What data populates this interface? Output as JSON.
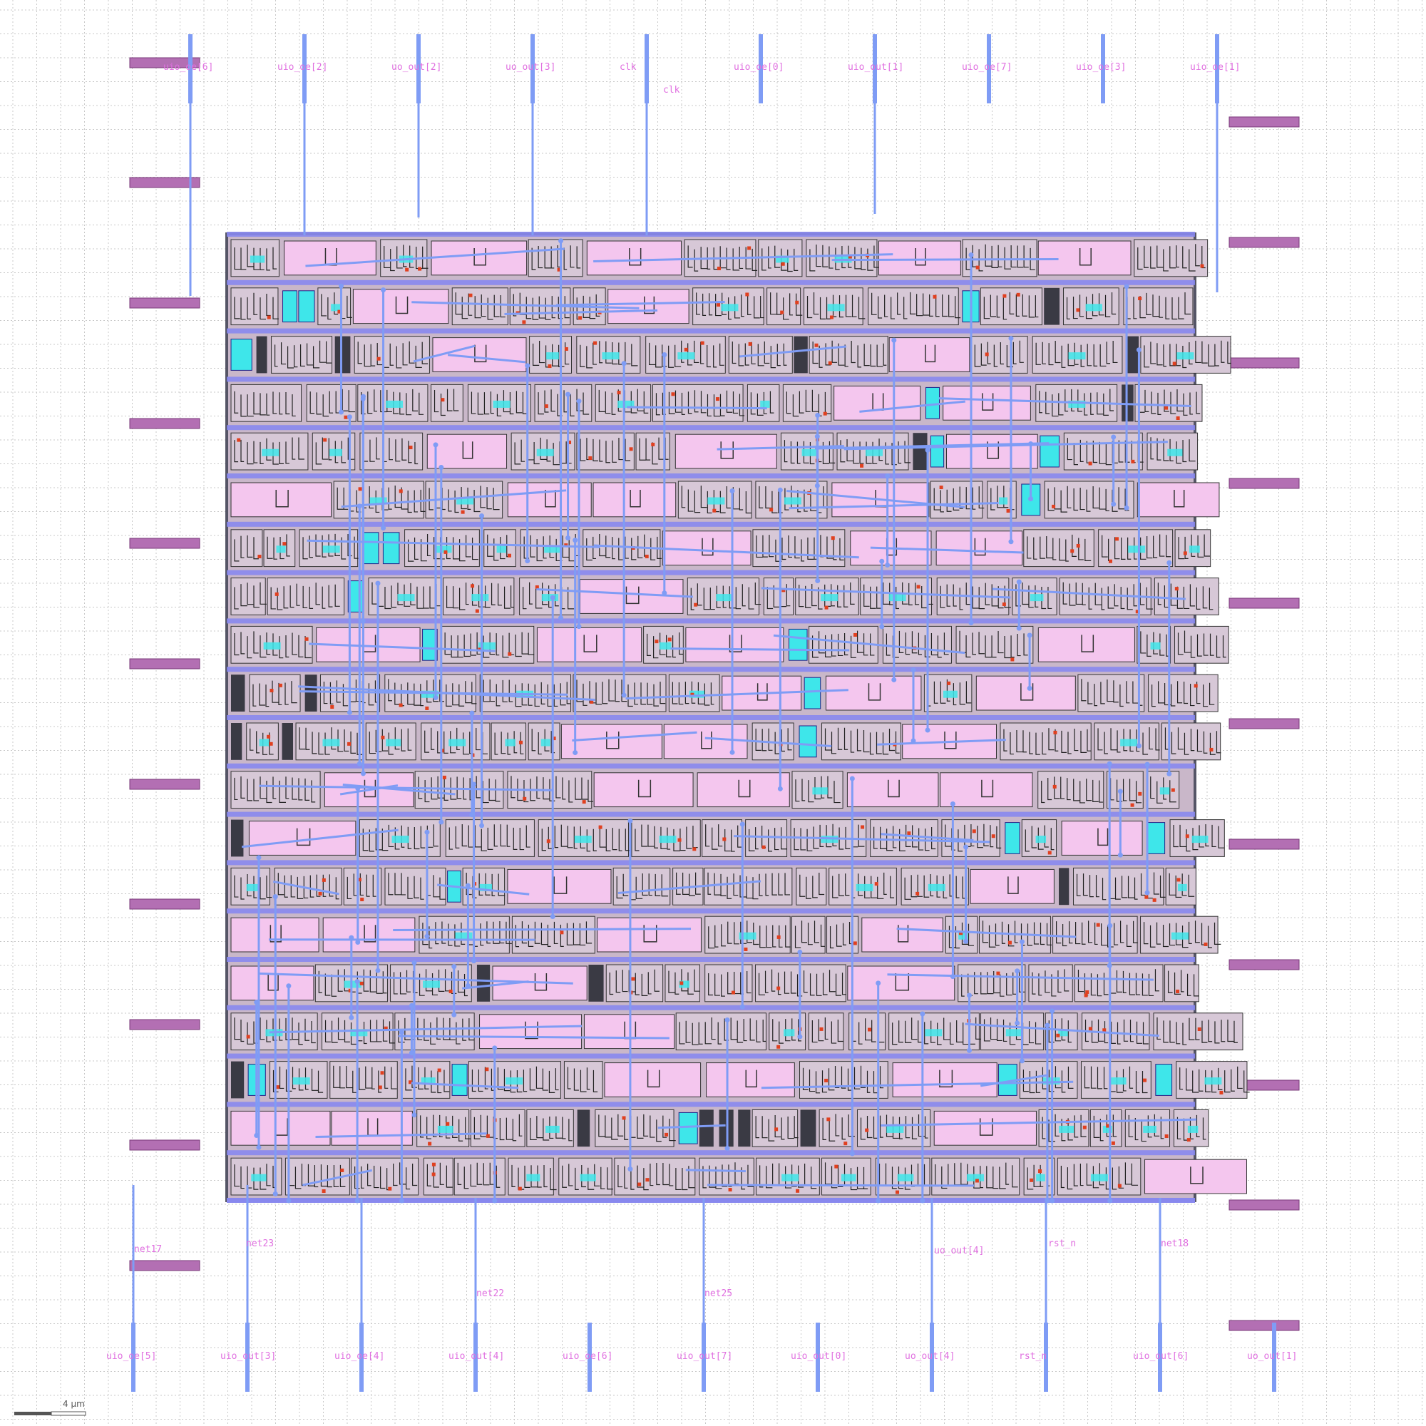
{
  "viewer": {
    "scale_bar_label": "4 µm"
  },
  "colors": {
    "background": "#ffffff",
    "grid": "#c8c8c8",
    "die_fill": "#c9b7c9",
    "die_border": "#555566",
    "metal": "#7f9cf5",
    "pin_text": "#e070e0",
    "side_pin": "#b36fb3",
    "side_pin_border": "#7a3a7a",
    "cell_light": "#f4c6ee",
    "cell_cyan": "#3ee6ea",
    "cell_dark": "#3a3a44",
    "via": "#e04020",
    "rail": "#8888ee"
  },
  "top_pins": [
    "uio_oe[6]",
    "uio_oe[2]",
    "uo_out[2]",
    "uo_out[3]",
    "clk",
    "uio_oe[0]",
    "uio_out[1]",
    "uio_oe[7]",
    "uio_oe[3]",
    "uio_oe[1]"
  ],
  "bottom_pins": [
    "uio_oe[5]",
    "uio_out[3]",
    "uio_oe[4]",
    "uio_out[4]",
    "uio_oe[6]",
    "uio_out[7]",
    "uio_out[0]",
    "uo_out[4]",
    "rst_n",
    "uio_out[6]",
    "uo_out[1]"
  ],
  "net_labels": [
    "net17",
    "net23",
    "net22",
    "net25",
    "uo_out[4]",
    "rst_n",
    "net18",
    "clk"
  ]
}
